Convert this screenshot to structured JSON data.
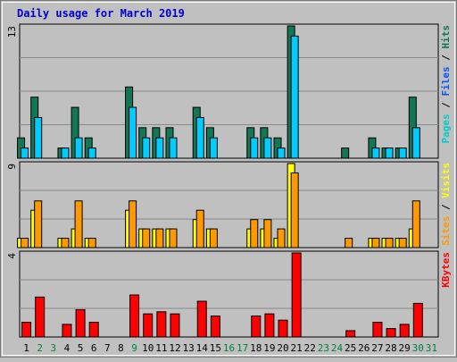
{
  "chart_data": {
    "type": "bar",
    "title": "Daily usage for March 2019",
    "colors": {
      "background": "#c0c0c0",
      "panel_bg": "#c0c0c0",
      "title": "#0000cc",
      "hits": "#117755",
      "files": "#00ccff",
      "pages": "#00cccc",
      "visits": "#ffff00",
      "sites": "#ff9900",
      "kbytes": "#ff0000",
      "weekend_label": "#008040",
      "weekday_label": "#000000",
      "gridline": "#8a8a8a"
    },
    "days": [
      "1",
      "2",
      "3",
      "4",
      "5",
      "6",
      "7",
      "8",
      "9",
      "10",
      "11",
      "12",
      "13",
      "14",
      "15",
      "16",
      "17",
      "18",
      "19",
      "20",
      "21",
      "22",
      "23",
      "24",
      "25",
      "26",
      "27",
      "28",
      "29",
      "30",
      "31"
    ],
    "weekend_days": [
      "2",
      "3",
      "9",
      "16",
      "17",
      "23",
      "24",
      "30",
      "31"
    ],
    "panels": [
      {
        "max_label": "13",
        "max_value": 13,
        "legend": [
          {
            "text": "Pages",
            "color": "#00cccc"
          },
          {
            "text": " / ",
            "color": "#000000"
          },
          {
            "text": "Files",
            "color": "#0055ff"
          },
          {
            "text": " / ",
            "color": "#000000"
          },
          {
            "text": "Hits",
            "color": "#117755"
          }
        ],
        "series": [
          {
            "name": "Hits",
            "color": "#117755",
            "values": [
              2,
              6,
              0,
              1,
              5,
              2,
              0,
              0,
              7,
              3,
              3,
              3,
              0,
              5,
              3,
              0,
              0,
              3,
              3,
              2,
              13,
              0,
              0,
              0,
              1,
              0,
              2,
              1,
              1,
              6,
              0
            ]
          },
          {
            "name": "Files",
            "color": "#00ccff",
            "values": [
              1,
              4,
              0,
              1,
              2,
              1,
              0,
              0,
              5,
              2,
              2,
              2,
              0,
              4,
              2,
              0,
              0,
              2,
              2,
              1,
              12,
              0,
              0,
              0,
              0,
              0,
              1,
              1,
              1,
              3,
              0
            ]
          }
        ]
      },
      {
        "max_label": "9",
        "max_value": 9,
        "legend": [
          {
            "text": "Sites",
            "color": "#ff9900"
          },
          {
            "text": " / ",
            "color": "#000000"
          },
          {
            "text": "Visits",
            "color": "#ffff00"
          }
        ],
        "series": [
          {
            "name": "Visits",
            "color": "#ffff00",
            "values": [
              1,
              4,
              0,
              1,
              2,
              1,
              0,
              0,
              4,
              2,
              2,
              2,
              0,
              3,
              2,
              0,
              0,
              2,
              2,
              1,
              9,
              0,
              0,
              0,
              0,
              0,
              1,
              1,
              1,
              2,
              0
            ]
          },
          {
            "name": "Sites",
            "color": "#ff9900",
            "values": [
              1,
              5,
              0,
              1,
              5,
              1,
              0,
              0,
              5,
              2,
              2,
              2,
              0,
              4,
              2,
              0,
              0,
              3,
              3,
              2,
              8,
              0,
              0,
              0,
              1,
              0,
              1,
              1,
              1,
              5,
              0
            ]
          }
        ]
      },
      {
        "max_label": "4",
        "max_value": 4,
        "legend": [
          {
            "text": "KBytes",
            "color": "#ff0000"
          }
        ],
        "series": [
          {
            "name": "KBytes",
            "color": "#ff0000",
            "values": [
              0.7,
              1.9,
              0,
              0.6,
              1.3,
              0.7,
              0,
              0,
              2.0,
              1.1,
              1.2,
              1.1,
              0,
              1.7,
              1.0,
              0,
              0,
              1.0,
              1.1,
              0.8,
              4.0,
              0,
              0,
              0,
              0.3,
              0,
              0.7,
              0.4,
              0.6,
              1.6,
              0
            ]
          }
        ]
      }
    ],
    "layout_hint": "three stacked panels; days 1-31 on x-axis; grid on"
  }
}
